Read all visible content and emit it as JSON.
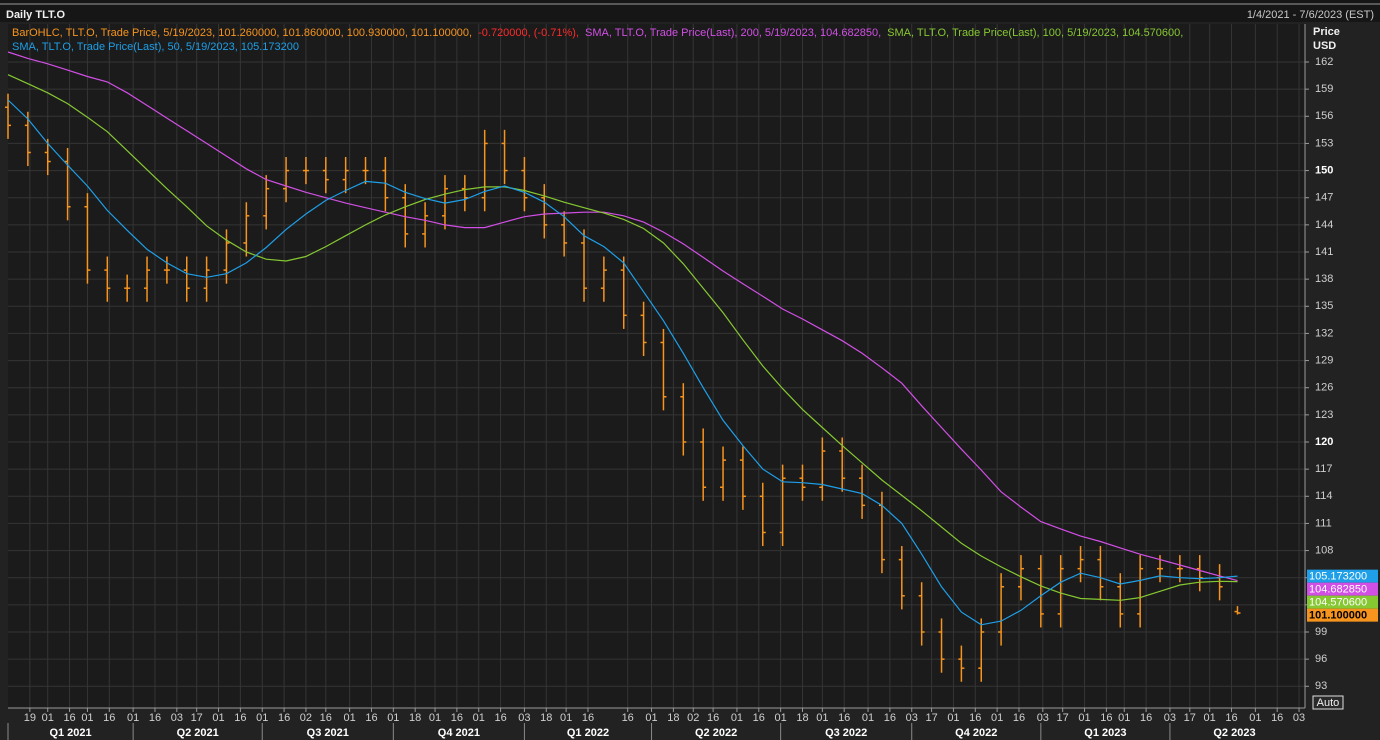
{
  "chart_data": {
    "type": "ohlc",
    "title": "Daily TLT.O",
    "range_label": "1/4/2021 - 7/6/2023 (EST)",
    "y_label": "Price",
    "y_unit": "USD",
    "auto_button": "Auto",
    "x": [
      "1/4/2021",
      "1/18/2021",
      "2/1/2021",
      "2/15/2021",
      "3/1/2021",
      "3/15/2021",
      "3/29/2021",
      "4/12/2021",
      "4/26/2021",
      "5/10/2021",
      "5/24/2021",
      "6/7/2021",
      "6/21/2021",
      "7/5/2021",
      "7/19/2021",
      "8/2/2021",
      "8/16/2021",
      "8/30/2021",
      "9/13/2021",
      "9/27/2021",
      "10/11/2021",
      "10/25/2021",
      "11/8/2021",
      "11/22/2021",
      "12/6/2021",
      "12/20/2021",
      "1/3/2022",
      "1/17/2022",
      "1/31/2022",
      "2/14/2022",
      "2/28/2022",
      "3/14/2022",
      "3/28/2022",
      "4/11/2022",
      "4/25/2022",
      "5/9/2022",
      "5/23/2022",
      "6/6/2022",
      "6/20/2022",
      "7/4/2022",
      "7/18/2022",
      "8/1/2022",
      "8/15/2022",
      "8/29/2022",
      "9/12/2022",
      "9/26/2022",
      "10/10/2022",
      "10/24/2022",
      "11/7/2022",
      "11/21/2022",
      "12/5/2022",
      "12/19/2022",
      "1/2/2023",
      "1/16/2023",
      "1/30/2023",
      "2/13/2023",
      "2/27/2023",
      "3/13/2023",
      "3/27/2023",
      "4/10/2023",
      "4/24/2023",
      "5/8/2023",
      "5/19/2023"
    ],
    "xlim": [
      "1/4/2021",
      "7/6/2023"
    ],
    "xticks": [
      {
        "value": "1/19/2021",
        "label": "19"
      },
      {
        "value": "2/1/2021",
        "label": "01"
      },
      {
        "value": "2/16/2021",
        "label": "16"
      },
      {
        "value": "3/1/2021",
        "label": "01"
      },
      {
        "value": "3/16/2021",
        "label": "16"
      },
      {
        "value": "4/1/2021",
        "label": "01"
      },
      {
        "value": "4/16/2021",
        "label": "16"
      },
      {
        "value": "5/3/2021",
        "label": "03"
      },
      {
        "value": "5/17/2021",
        "label": "17"
      },
      {
        "value": "6/1/2021",
        "label": "01"
      },
      {
        "value": "6/16/2021",
        "label": "16"
      },
      {
        "value": "7/1/2021",
        "label": "01"
      },
      {
        "value": "7/16/2021",
        "label": "16"
      },
      {
        "value": "8/2/2021",
        "label": "02"
      },
      {
        "value": "8/16/2021",
        "label": "16"
      },
      {
        "value": "9/1/2021",
        "label": "01"
      },
      {
        "value": "9/16/2021",
        "label": "16"
      },
      {
        "value": "10/1/2021",
        "label": "01"
      },
      {
        "value": "10/18/2021",
        "label": "18"
      },
      {
        "value": "11/1/2021",
        "label": "01"
      },
      {
        "value": "11/16/2021",
        "label": "16"
      },
      {
        "value": "12/1/2021",
        "label": "01"
      },
      {
        "value": "12/16/2021",
        "label": "16"
      },
      {
        "value": "1/3/2022",
        "label": "03"
      },
      {
        "value": "1/18/2022",
        "label": "18"
      },
      {
        "value": "2/1/2022",
        "label": "01"
      },
      {
        "value": "2/16/2022",
        "label": "16"
      },
      {
        "value": "3/16/2022",
        "label": "16"
      },
      {
        "value": "4/1/2022",
        "label": "01"
      },
      {
        "value": "4/18/2022",
        "label": "18"
      },
      {
        "value": "5/2/2022",
        "label": "02"
      },
      {
        "value": "5/16/2022",
        "label": "16"
      },
      {
        "value": "6/1/2022",
        "label": "01"
      },
      {
        "value": "6/16/2022",
        "label": "16"
      },
      {
        "value": "7/1/2022",
        "label": "01"
      },
      {
        "value": "7/18/2022",
        "label": "18"
      },
      {
        "value": "8/1/2022",
        "label": "01"
      },
      {
        "value": "8/16/2022",
        "label": "16"
      },
      {
        "value": "9/1/2022",
        "label": "01"
      },
      {
        "value": "9/16/2022",
        "label": "16"
      },
      {
        "value": "10/3/2022",
        "label": "03"
      },
      {
        "value": "10/17/2022",
        "label": "17"
      },
      {
        "value": "11/1/2022",
        "label": "01"
      },
      {
        "value": "11/16/2022",
        "label": "16"
      },
      {
        "value": "12/1/2022",
        "label": "01"
      },
      {
        "value": "12/16/2022",
        "label": "16"
      },
      {
        "value": "1/3/2023",
        "label": "03"
      },
      {
        "value": "1/17/2023",
        "label": "17"
      },
      {
        "value": "2/1/2023",
        "label": "01"
      },
      {
        "value": "2/16/2023",
        "label": "16"
      },
      {
        "value": "3/1/2023",
        "label": "01"
      },
      {
        "value": "3/16/2023",
        "label": "16"
      },
      {
        "value": "4/3/2023",
        "label": "03"
      },
      {
        "value": "4/17/2023",
        "label": "17"
      },
      {
        "value": "5/1/2023",
        "label": "01"
      },
      {
        "value": "5/16/2023",
        "label": "16"
      },
      {
        "value": "6/1/2023",
        "label": "01"
      },
      {
        "value": "6/16/2023",
        "label": "16"
      },
      {
        "value": "7/3/2023",
        "label": "03"
      }
    ],
    "quarters": [
      "Q1 2021",
      "Q2 2021",
      "Q3 2021",
      "Q4 2021",
      "Q1 2022",
      "Q2 2022",
      "Q3 2022",
      "Q4 2022",
      "Q1 2023",
      "Q2 2023"
    ],
    "ylim": [
      90.6,
      166.2
    ],
    "yticks": [
      93,
      96,
      99,
      102,
      105,
      108,
      111,
      114,
      117,
      120,
      123,
      126,
      129,
      132,
      135,
      138,
      141,
      144,
      147,
      150,
      153,
      156,
      159,
      162
    ],
    "grid": true,
    "series": [
      {
        "name": "BarOHLC, TLT.O, Trade Price, 5/19/2023, 101.260000, 101.860000, 100.930000, 101.100000,",
        "change_label": "-0.720000, (-0.71%),",
        "change_color": "#ff2a2a",
        "type": "ohlc",
        "color": "#f7941d",
        "last_label": "101.100000",
        "open": [
          157,
          155,
          152,
          151,
          146,
          139,
          137,
          137,
          139,
          139,
          137,
          139,
          142,
          145,
          148,
          150,
          150,
          149,
          150,
          150,
          147,
          143,
          145,
          148,
          147,
          153,
          150,
          147,
          144,
          142,
          137,
          139,
          134,
          131,
          125,
          120,
          115,
          118,
          114,
          110,
          116,
          115,
          119,
          116,
          113,
          107,
          103,
          99,
          96,
          95,
          99,
          104,
          106,
          101,
          106,
          107,
          104,
          101,
          106,
          106,
          106,
          105,
          101.26
        ],
        "high": [
          158.5,
          156.5,
          153.5,
          152.5,
          147.5,
          140.5,
          138.5,
          140.5,
          140.5,
          140.5,
          140.5,
          143.5,
          146.5,
          149.5,
          151.5,
          151.5,
          151.5,
          151.5,
          151.5,
          151.5,
          148.5,
          146.5,
          149.5,
          149.5,
          154.5,
          154.5,
          151.5,
          148.5,
          145.5,
          143.5,
          140.5,
          140.5,
          135.5,
          132.5,
          126.5,
          121.5,
          119.5,
          119.5,
          115.5,
          117.5,
          117.5,
          120.5,
          120.5,
          117.5,
          114.5,
          108.5,
          104.5,
          100.5,
          97.5,
          100.5,
          105.5,
          107.5,
          107.5,
          107.5,
          108.5,
          108.5,
          105.5,
          107.5,
          107.5,
          107.5,
          107.5,
          106.5,
          101.86
        ],
        "low": [
          153.5,
          150.5,
          149.5,
          144.5,
          137.5,
          135.5,
          135.5,
          135.5,
          137.5,
          135.5,
          135.5,
          137.5,
          140.5,
          143.5,
          146.5,
          148.5,
          147.5,
          147.5,
          148.5,
          145.5,
          141.5,
          141.5,
          143.5,
          145.5,
          145.5,
          148.5,
          145.5,
          142.5,
          140.5,
          135.5,
          135.5,
          132.5,
          129.5,
          123.5,
          118.5,
          113.5,
          113.5,
          112.5,
          108.5,
          108.5,
          113.5,
          113.5,
          114.5,
          111.5,
          105.5,
          101.5,
          97.5,
          94.5,
          93.5,
          93.5,
          97.5,
          102.5,
          99.5,
          99.5,
          104.5,
          102.5,
          99.5,
          99.5,
          104.5,
          104.5,
          103.5,
          102.5,
          100.93
        ],
        "close": [
          155,
          152,
          151,
          146,
          139,
          137,
          137,
          139,
          139,
          137,
          139,
          142,
          145,
          148,
          150,
          150,
          149,
          150,
          150,
          147,
          143,
          145,
          148,
          147,
          153,
          150,
          147,
          144,
          142,
          137,
          139,
          134,
          131,
          125,
          120,
          115,
          118,
          114,
          110,
          116,
          115,
          119,
          116,
          113,
          107,
          103,
          99,
          96,
          95,
          99,
          104,
          106,
          101,
          106,
          107,
          104,
          101,
          106,
          106,
          106,
          105,
          104,
          101.1
        ]
      },
      {
        "name": "SMA, TLT.O, Trade Price(Last), 200, 5/19/2023, 104.682850,",
        "type": "line",
        "color": "#d24fe6",
        "last_label": "104.682850",
        "values": [
          163.1,
          162.4,
          161.8,
          161.1,
          160.4,
          159.8,
          158.6,
          157.2,
          155.8,
          154.4,
          153.0,
          151.6,
          150.2,
          149.0,
          148.3,
          147.6,
          147.0,
          146.4,
          145.9,
          145.4,
          144.9,
          144.5,
          144.0,
          143.7,
          143.7,
          144.3,
          144.9,
          145.2,
          145.3,
          145.4,
          145.4,
          145.0,
          144.3,
          143.2,
          141.9,
          140.4,
          138.9,
          137.5,
          136.1,
          134.7,
          133.6,
          132.4,
          131.2,
          129.8,
          128.2,
          126.5,
          124.0,
          121.6,
          119.2,
          116.9,
          114.5,
          112.8,
          111.2,
          110.4,
          109.6,
          109.0,
          108.3,
          107.6,
          107.0,
          106.4,
          105.8,
          105.2,
          104.68285
        ]
      },
      {
        "name": "SMA, TLT.O, Trade Price(Last), 100, 5/19/2023, 104.570600,",
        "type": "line",
        "color": "#86c832",
        "last_label": "104.570600",
        "values": [
          160.6,
          159.6,
          158.6,
          157.4,
          155.9,
          154.3,
          152.2,
          150.1,
          148.0,
          146.0,
          143.9,
          142.3,
          141.0,
          140.2,
          140.0,
          140.5,
          141.6,
          142.8,
          144.0,
          145.1,
          146.0,
          146.8,
          147.4,
          147.9,
          148.2,
          148.2,
          147.8,
          147.2,
          146.5,
          145.9,
          145.3,
          144.6,
          143.6,
          142.0,
          139.7,
          137.0,
          134.3,
          131.3,
          128.4,
          125.9,
          123.6,
          121.6,
          119.6,
          117.7,
          115.8,
          114.1,
          112.4,
          110.6,
          108.8,
          107.4,
          106.2,
          105.1,
          104.1,
          103.3,
          102.7,
          102.6,
          102.5,
          102.8,
          103.5,
          104.2,
          104.5,
          104.6,
          104.5706
        ]
      },
      {
        "name": "SMA, TLT.O, Trade Price(Last), 50, 5/19/2023, 105.173200",
        "type": "line",
        "color": "#1e9fe8",
        "last_label": "105.173200",
        "values": [
          157.8,
          155.7,
          153.0,
          150.6,
          148.3,
          145.6,
          143.4,
          141.3,
          139.8,
          138.6,
          138.2,
          138.6,
          139.8,
          141.5,
          143.5,
          145.2,
          146.7,
          147.8,
          148.8,
          148.6,
          147.6,
          146.9,
          146.4,
          146.8,
          147.7,
          148.3,
          147.6,
          146.5,
          144.9,
          142.8,
          141.6,
          139.8,
          136.6,
          133.4,
          129.8,
          126.0,
          122.4,
          119.6,
          117.0,
          115.6,
          115.5,
          115.3,
          114.8,
          114.3,
          113.0,
          111.0,
          107.6,
          104.0,
          101.2,
          99.8,
          100.2,
          101.4,
          103.0,
          104.5,
          105.5,
          105.0,
          104.3,
          104.7,
          105.2,
          105.0,
          104.9,
          105.0,
          105.1732
        ]
      }
    ]
  }
}
